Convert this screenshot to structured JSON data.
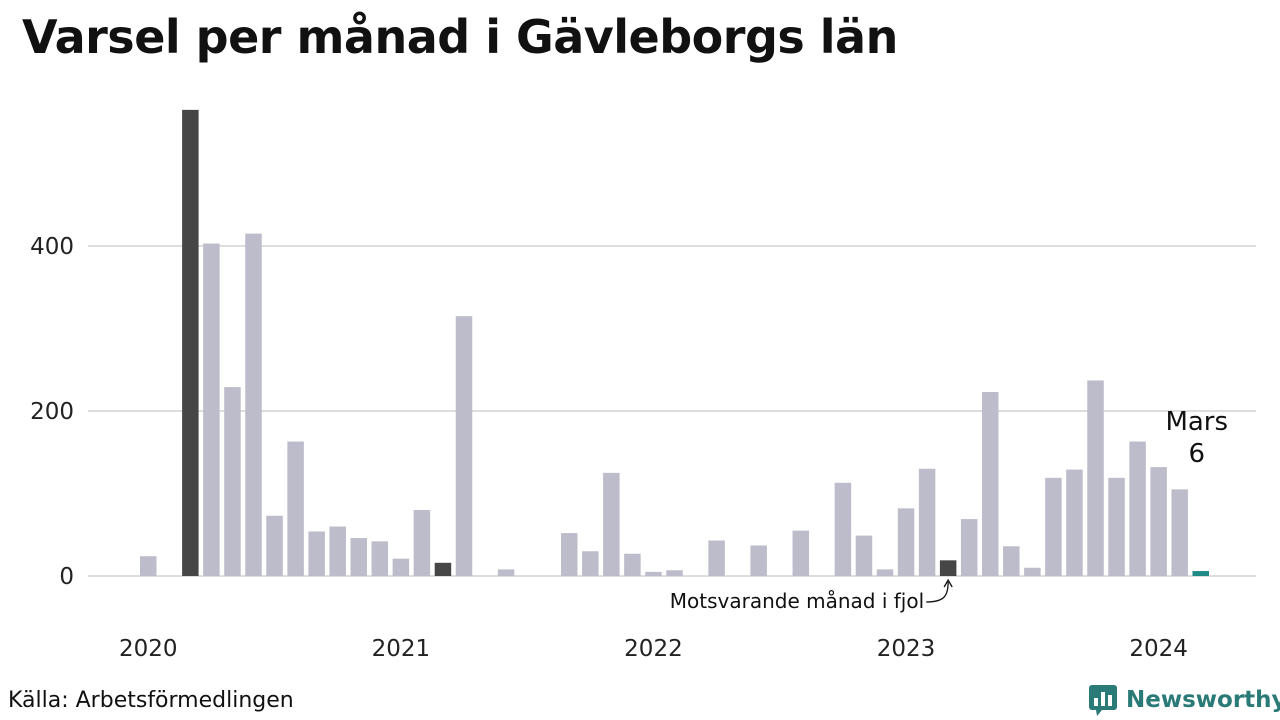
{
  "title": "Varsel per månad i Gävleborgs län",
  "source": "Källa: Arbetsförmedlingen",
  "brand": {
    "name": "Newsworthy",
    "icon": "newsworthy-logo-icon"
  },
  "colors": {
    "bar": "#bdbccb",
    "highlight": "#464646",
    "current": "#1f8a86",
    "grid": "#dddddd",
    "brand": "#2a7a77"
  },
  "chart_data": {
    "type": "bar",
    "title": "Varsel per månad i Gävleborgs län",
    "xlabel": "",
    "ylabel": "",
    "ylim": [
      0,
      570
    ],
    "yticks": [
      0,
      200,
      400
    ],
    "x_tick_labels": [
      "2020",
      "2021",
      "2022",
      "2023",
      "2024"
    ],
    "grid": true,
    "legend": "none",
    "categories": [
      "2020-01",
      "2020-02",
      "2020-03",
      "2020-04",
      "2020-05",
      "2020-06",
      "2020-07",
      "2020-08",
      "2020-09",
      "2020-10",
      "2020-11",
      "2020-12",
      "2021-01",
      "2021-02",
      "2021-03",
      "2021-04",
      "2021-05",
      "2021-06",
      "2021-07",
      "2021-08",
      "2021-09",
      "2021-10",
      "2021-11",
      "2021-12",
      "2022-01",
      "2022-02",
      "2022-03",
      "2022-04",
      "2022-05",
      "2022-06",
      "2022-07",
      "2022-08",
      "2022-09",
      "2022-10",
      "2022-11",
      "2022-12",
      "2023-01",
      "2023-02",
      "2023-03",
      "2023-04",
      "2023-05",
      "2023-06",
      "2023-07",
      "2023-08",
      "2023-09",
      "2023-10",
      "2023-11",
      "2023-12",
      "2024-01",
      "2024-02",
      "2024-03"
    ],
    "values": [
      24,
      0,
      565,
      403,
      229,
      415,
      73,
      163,
      54,
      60,
      46,
      42,
      21,
      80,
      16,
      315,
      0,
      8,
      0,
      0,
      52,
      30,
      125,
      27,
      5,
      7,
      0,
      43,
      0,
      37,
      0,
      55,
      0,
      113,
      49,
      8,
      82,
      130,
      19,
      69,
      223,
      36,
      10,
      119,
      129,
      237,
      119,
      163,
      132,
      105,
      6
    ],
    "highlighted": [
      "2020-03",
      "2021-03",
      "2023-03"
    ],
    "current": "2024-03",
    "annotations": {
      "current_label": {
        "month": "Mars",
        "value": "6"
      },
      "last_year_label": "Motsvarande månad i fjol"
    }
  }
}
